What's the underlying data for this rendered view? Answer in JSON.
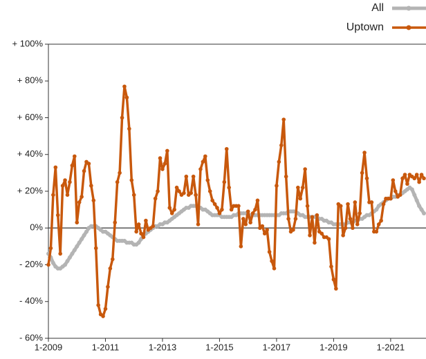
{
  "chart_data": {
    "type": "line",
    "categories": [
      "1-2009",
      null,
      null,
      null,
      null,
      null,
      null,
      null,
      null,
      null,
      null,
      null,
      null,
      null,
      null,
      null,
      null,
      null,
      null,
      null,
      null,
      null,
      null,
      null,
      "1-2011",
      null,
      null,
      null,
      null,
      null,
      null,
      null,
      null,
      null,
      null,
      null,
      null,
      null,
      null,
      null,
      null,
      null,
      null,
      null,
      null,
      null,
      null,
      null,
      "1-2013",
      null,
      null,
      null,
      null,
      null,
      null,
      null,
      null,
      null,
      null,
      null,
      null,
      null,
      null,
      null,
      null,
      null,
      null,
      null,
      null,
      null,
      null,
      null,
      "1-2015",
      null,
      null,
      null,
      null,
      null,
      null,
      null,
      null,
      null,
      null,
      null,
      null,
      null,
      null,
      null,
      null,
      null,
      null,
      null,
      null,
      null,
      null,
      null,
      "1-2017",
      null,
      null,
      null,
      null,
      null,
      null,
      null,
      null,
      null,
      null,
      null,
      null,
      null,
      null,
      null,
      null,
      null,
      null,
      null,
      null,
      null,
      null,
      null,
      "1-2019",
      null,
      null,
      null,
      null,
      null,
      null,
      null,
      null,
      null,
      null,
      null,
      null,
      null,
      null,
      null,
      null,
      null,
      null,
      null,
      null,
      null,
      null,
      null,
      "1-2021",
      null,
      null,
      null,
      null,
      null,
      null,
      null,
      null,
      null,
      null,
      null,
      null,
      null,
      null
    ],
    "series": [
      {
        "name": "All",
        "color": "#b4b4b4",
        "values": [
          -14,
          -16,
          -19,
          -21,
          -22,
          -22,
          -21,
          -20,
          -18,
          -16,
          -14,
          -12,
          -10,
          -8,
          -6,
          -4,
          -2,
          0,
          1,
          1,
          1,
          0,
          -1,
          -2,
          -2,
          -3,
          -4,
          -5,
          -6,
          -7,
          -7,
          -7,
          -7,
          -8,
          -8,
          -8,
          -9,
          -9,
          -8,
          -6,
          -4,
          -3,
          -2,
          -1,
          0,
          1,
          1,
          2,
          2,
          3,
          3,
          4,
          5,
          6,
          7,
          8,
          9,
          10,
          11,
          11,
          12,
          12,
          12,
          11,
          11,
          10,
          10,
          9,
          8,
          7,
          7,
          7,
          7,
          6,
          6,
          6,
          6,
          6,
          7,
          7,
          8,
          8,
          8,
          8,
          7,
          7,
          7,
          7,
          7,
          7,
          7,
          7,
          7,
          7,
          7,
          7,
          7,
          7,
          8,
          8,
          8,
          9,
          9,
          9,
          9,
          8,
          7,
          7,
          6,
          6,
          6,
          6,
          6,
          6,
          5,
          5,
          4,
          4,
          3,
          3,
          2,
          2,
          2,
          2,
          2,
          2,
          3,
          3,
          3,
          4,
          4,
          5,
          5,
          6,
          7,
          7,
          8,
          9,
          10,
          12,
          13,
          14,
          15,
          16,
          16,
          17,
          17,
          18,
          18,
          19,
          20,
          21,
          22,
          21,
          18,
          15,
          12,
          10,
          8
        ]
      },
      {
        "name": "Uptown",
        "color": "#c8580c",
        "values": [
          -20,
          -11,
          18,
          33,
          7,
          -14,
          23,
          26,
          18,
          25,
          34,
          39,
          3,
          14,
          17,
          31,
          36,
          35,
          23,
          15,
          -11,
          -42,
          -47,
          -48,
          -44,
          -32,
          -22,
          -17,
          3,
          25,
          30,
          60,
          77,
          71,
          54,
          26,
          18,
          -2,
          2,
          -3,
          -5,
          4,
          -1,
          0,
          1,
          16,
          20,
          38,
          32,
          35,
          42,
          11,
          8,
          10,
          22,
          20,
          18,
          19,
          28,
          18,
          19,
          28,
          18,
          2,
          32,
          36,
          39,
          26,
          20,
          15,
          13,
          11,
          8,
          10,
          25,
          43,
          22,
          10,
          12,
          12,
          12,
          -10,
          5,
          2,
          9,
          3,
          8,
          10,
          15,
          0,
          1,
          -3,
          -1,
          -13,
          -18,
          -22,
          23,
          36,
          45,
          59,
          28,
          5,
          -2,
          -1,
          5,
          22,
          16,
          22,
          32,
          12,
          -4,
          6,
          -8,
          7,
          -2,
          -3,
          -5,
          -5,
          -6,
          -21,
          -28,
          -33,
          13,
          12,
          -4,
          0,
          13,
          5,
          0,
          14,
          2,
          8,
          30,
          41,
          27,
          14,
          14,
          -2,
          -2,
          2,
          4,
          13,
          16,
          16,
          16,
          26,
          20,
          17,
          18,
          27,
          29,
          24,
          29,
          28,
          27,
          29,
          25,
          29,
          27
        ]
      }
    ],
    "ylim": [
      -60,
      100
    ],
    "yticks": [
      {
        "value": -60,
        "label": "- 60%"
      },
      {
        "value": -40,
        "label": "- 40%"
      },
      {
        "value": -20,
        "label": "- 20%"
      },
      {
        "value": 0,
        "label": "0%"
      },
      {
        "value": 20,
        "label": "+ 20%"
      },
      {
        "value": 40,
        "label": "+ 40%"
      },
      {
        "value": 60,
        "label": "+ 60%"
      },
      {
        "value": 80,
        "label": "+ 80%"
      },
      {
        "value": 100,
        "label": "+ 100%"
      }
    ],
    "legend": "top-right"
  }
}
